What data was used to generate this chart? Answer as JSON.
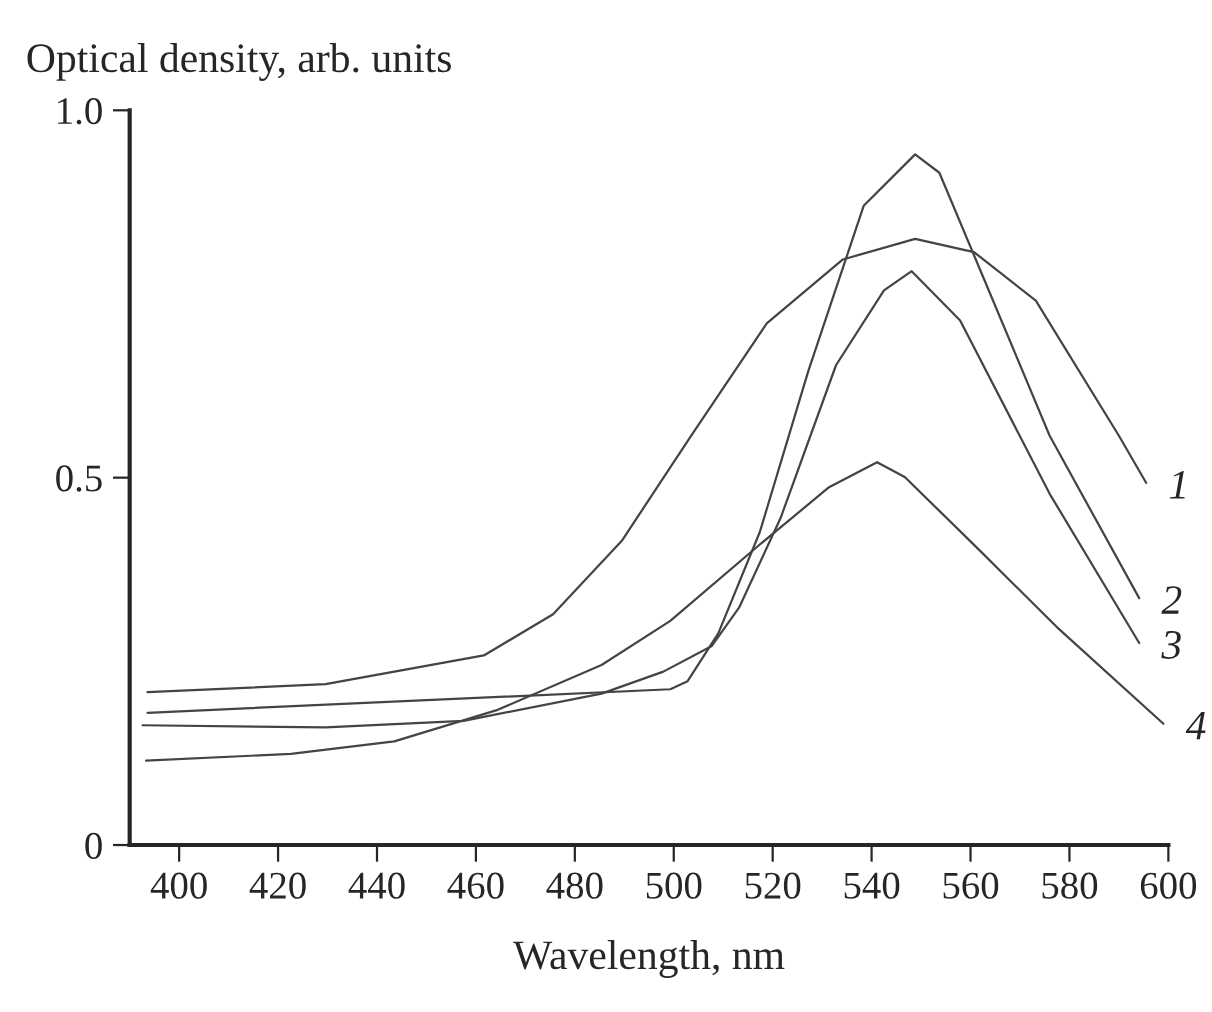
{
  "chart_data": {
    "type": "line",
    "xlabel": "Wavelength, nm",
    "ylabel": "Optical density, arb. units",
    "xlim": [
      390,
      600
    ],
    "xticks": [
      400,
      420,
      440,
      460,
      480,
      500,
      520,
      540,
      560,
      580,
      600
    ],
    "ylim": [
      0,
      1
    ],
    "yticks": [
      0,
      0.5,
      {
        "value": 1,
        "label": "1.0"
      }
    ],
    "grid": false,
    "legend": false,
    "marker": "none",
    "line_style": "solid",
    "series": [
      {
        "name": "1",
        "color": "#444444",
        "x": [
          393.6,
          429.6,
          461.6,
          475.6,
          489.5,
          503.5,
          518.8,
          534.2,
          548.8,
          560.7,
          573.2,
          590,
          595.5
        ],
        "values": [
          0.208,
          0.219,
          0.258,
          0.314,
          0.414,
          0.557,
          0.71,
          0.797,
          0.825,
          0.807,
          0.741,
          0.557,
          0.493
        ]
      },
      {
        "name": "2",
        "color": "#444444",
        "x": [
          393.6,
          499.3,
          502.8,
          509,
          517.4,
          527.2,
          538.4,
          548.8,
          553.7,
          562,
          576,
          594.1
        ],
        "values": [
          0.18,
          0.212,
          0.223,
          0.288,
          0.426,
          0.645,
          0.87,
          0.94,
          0.915,
          0.782,
          0.557,
          0.336
        ]
      },
      {
        "name": "3",
        "color": "#444444",
        "x": [
          392.6,
          429.6,
          457.5,
          485.4,
          497.9,
          507.7,
          513.2,
          521.6,
          532.8,
          542.5,
          548.1,
          557.9,
          576,
          594.1
        ],
        "values": [
          0.163,
          0.16,
          0.169,
          0.206,
          0.236,
          0.271,
          0.323,
          0.445,
          0.653,
          0.755,
          0.781,
          0.714,
          0.478,
          0.275
        ]
      },
      {
        "name": "4",
        "color": "#444444",
        "x": [
          393.3,
          422.6,
          443.5,
          464.4,
          485.4,
          499.3,
          517.4,
          531.4,
          541.1,
          546.7,
          562,
          577.4,
          599
        ],
        "values": [
          0.115,
          0.124,
          0.141,
          0.184,
          0.245,
          0.305,
          0.409,
          0.487,
          0.521,
          0.501,
          0.4,
          0.297,
          0.165
        ]
      }
    ]
  }
}
